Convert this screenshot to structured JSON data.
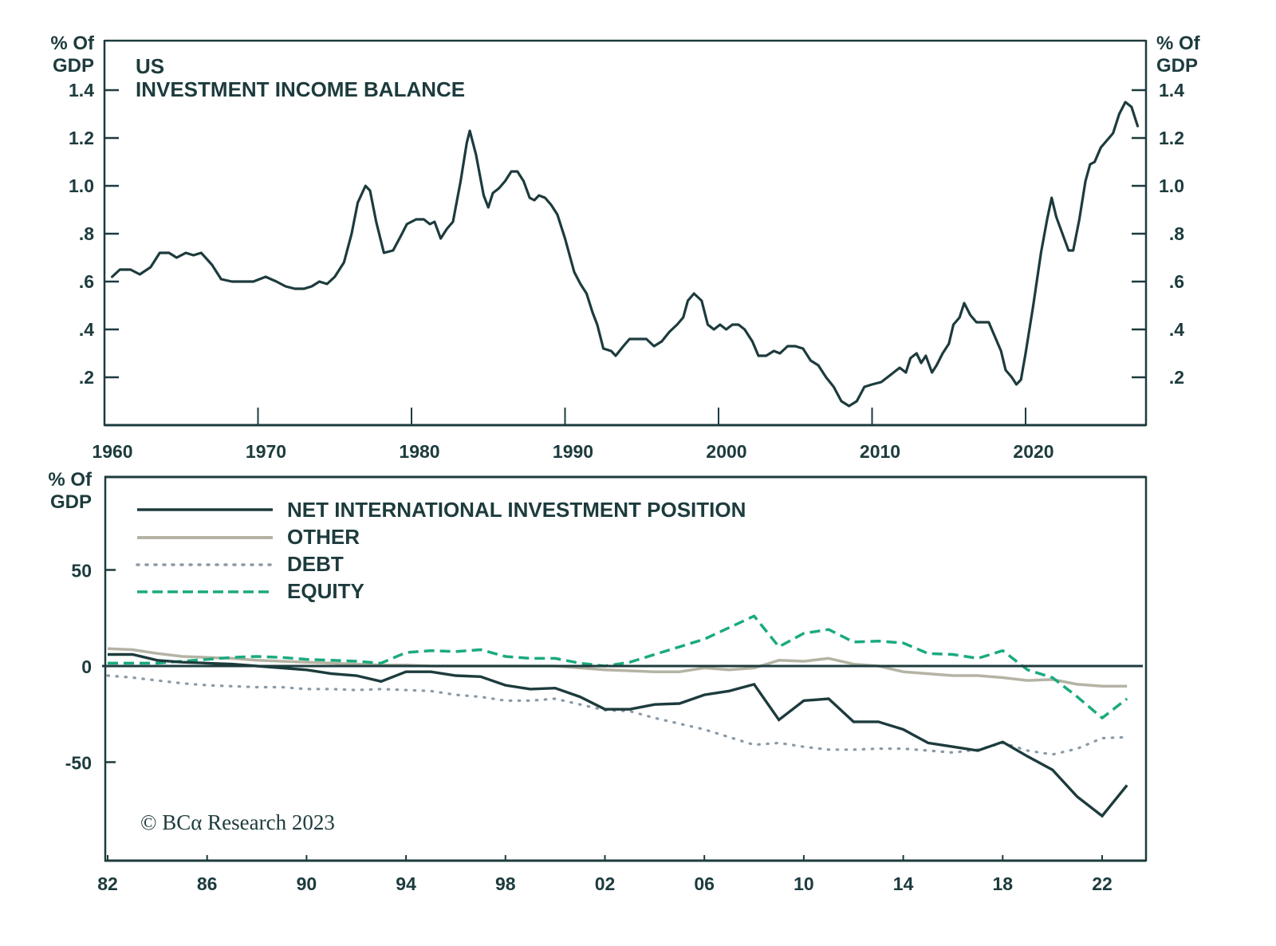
{
  "chart_data": [
    {
      "type": "line",
      "title": "US",
      "subtitle": "INVESTMENT INCOME BALANCE",
      "ylabel_left": "% Of\nGDP",
      "ylabel_right": "% Of\nGDP",
      "xlabel": "",
      "xlim": [
        1960,
        2028
      ],
      "ylim": [
        0,
        1.6
      ],
      "yticks": [
        0.2,
        0.4,
        0.6,
        0.8,
        1.0,
        1.2,
        1.4
      ],
      "ytick_labels": [
        ".2",
        ".4",
        ".6",
        ".8",
        "1.0",
        "1.2",
        "1.4"
      ],
      "xticks": [
        1960,
        1970,
        1980,
        1990,
        2000,
        2010,
        2020
      ],
      "xtick_labels": [
        "1960",
        "1970",
        "1980",
        "1990",
        "2000",
        "2010",
        "2020"
      ],
      "grid": false,
      "series": [
        {
          "name": "Investment Income Balance",
          "color": "#1d3b3d",
          "style": "solid",
          "points": [
            [
              1960.5,
              0.62
            ],
            [
              1961,
              0.65
            ],
            [
              1961.7,
              0.65
            ],
            [
              1962.3,
              0.63
            ],
            [
              1963,
              0.66
            ],
            [
              1963.6,
              0.72
            ],
            [
              1964.2,
              0.72
            ],
            [
              1964.7,
              0.7
            ],
            [
              1965.3,
              0.72
            ],
            [
              1965.8,
              0.71
            ],
            [
              1966.3,
              0.72
            ],
            [
              1967,
              0.67
            ],
            [
              1967.6,
              0.61
            ],
            [
              1968.3,
              0.6
            ],
            [
              1969,
              0.6
            ],
            [
              1969.7,
              0.6
            ],
            [
              1970.5,
              0.62
            ],
            [
              1971.2,
              0.6
            ],
            [
              1971.8,
              0.58
            ],
            [
              1972.4,
              0.57
            ],
            [
              1973,
              0.57
            ],
            [
              1973.5,
              0.58
            ],
            [
              1974,
              0.6
            ],
            [
              1974.5,
              0.59
            ],
            [
              1975,
              0.62
            ],
            [
              1975.6,
              0.68
            ],
            [
              1976.1,
              0.8
            ],
            [
              1976.5,
              0.93
            ],
            [
              1977,
              1.0
            ],
            [
              1977.3,
              0.98
            ],
            [
              1977.7,
              0.85
            ],
            [
              1978.2,
              0.72
            ],
            [
              1978.8,
              0.73
            ],
            [
              1979.3,
              0.79
            ],
            [
              1979.7,
              0.84
            ],
            [
              1980.3,
              0.86
            ],
            [
              1980.8,
              0.86
            ],
            [
              1981.2,
              0.84
            ],
            [
              1981.5,
              0.85
            ],
            [
              1981.9,
              0.78
            ],
            [
              1982.3,
              0.82
            ],
            [
              1982.7,
              0.85
            ],
            [
              1983.2,
              1.02
            ],
            [
              1983.6,
              1.18
            ],
            [
              1983.8,
              1.23
            ],
            [
              1984.2,
              1.13
            ],
            [
              1984.7,
              0.96
            ],
            [
              1985,
              0.91
            ],
            [
              1985.3,
              0.97
            ],
            [
              1985.7,
              0.99
            ],
            [
              1986.1,
              1.02
            ],
            [
              1986.5,
              1.06
            ],
            [
              1986.9,
              1.06
            ],
            [
              1987.3,
              1.02
            ],
            [
              1987.7,
              0.95
            ],
            [
              1988,
              0.94
            ],
            [
              1988.3,
              0.96
            ],
            [
              1988.7,
              0.95
            ],
            [
              1989.1,
              0.92
            ],
            [
              1989.5,
              0.88
            ],
            [
              1990,
              0.78
            ],
            [
              1990.6,
              0.64
            ],
            [
              1991,
              0.59
            ],
            [
              1991.4,
              0.55
            ],
            [
              1991.8,
              0.47
            ],
            [
              1992.1,
              0.42
            ],
            [
              1992.5,
              0.32
            ],
            [
              1993,
              0.31
            ],
            [
              1993.3,
              0.29
            ],
            [
              1993.8,
              0.33
            ],
            [
              1994.2,
              0.36
            ],
            [
              1994.8,
              0.36
            ],
            [
              1995.3,
              0.36
            ],
            [
              1995.8,
              0.33
            ],
            [
              1996.3,
              0.35
            ],
            [
              1996.8,
              0.39
            ],
            [
              1997.3,
              0.42
            ],
            [
              1997.7,
              0.45
            ],
            [
              1998,
              0.52
            ],
            [
              1998.4,
              0.55
            ],
            [
              1998.9,
              0.52
            ],
            [
              1999.3,
              0.42
            ],
            [
              1999.7,
              0.4
            ],
            [
              2000.1,
              0.42
            ],
            [
              2000.5,
              0.4
            ],
            [
              2000.9,
              0.42
            ],
            [
              2001.3,
              0.42
            ],
            [
              2001.7,
              0.4
            ],
            [
              2002.2,
              0.35
            ],
            [
              2002.6,
              0.29
            ],
            [
              2003.1,
              0.29
            ],
            [
              2003.6,
              0.31
            ],
            [
              2004,
              0.3
            ],
            [
              2004.5,
              0.33
            ],
            [
              2005,
              0.33
            ],
            [
              2005.5,
              0.32
            ],
            [
              2006,
              0.27
            ],
            [
              2006.5,
              0.25
            ],
            [
              2007,
              0.2
            ],
            [
              2007.5,
              0.16
            ],
            [
              2008,
              0.1
            ],
            [
              2008.5,
              0.08
            ],
            [
              2009,
              0.1
            ],
            [
              2009.5,
              0.16
            ],
            [
              2010,
              0.17
            ],
            [
              2010.6,
              0.18
            ],
            [
              2011,
              0.2
            ],
            [
              2011.4,
              0.22
            ],
            [
              2011.8,
              0.24
            ],
            [
              2012.2,
              0.22
            ],
            [
              2012.5,
              0.28
            ],
            [
              2012.9,
              0.3
            ],
            [
              2013.2,
              0.26
            ],
            [
              2013.5,
              0.29
            ],
            [
              2013.9,
              0.22
            ],
            [
              2014.2,
              0.25
            ],
            [
              2014.6,
              0.3
            ],
            [
              2015,
              0.34
            ],
            [
              2015.3,
              0.42
            ],
            [
              2015.7,
              0.45
            ],
            [
              2016,
              0.51
            ],
            [
              2016.4,
              0.46
            ],
            [
              2016.8,
              0.43
            ],
            [
              2017.6,
              0.43
            ],
            [
              2018,
              0.37
            ],
            [
              2018.4,
              0.31
            ],
            [
              2018.7,
              0.23
            ],
            [
              2019.1,
              0.2
            ],
            [
              2019.4,
              0.17
            ],
            [
              2019.7,
              0.19
            ],
            [
              2020,
              0.3
            ],
            [
              2020.5,
              0.5
            ],
            [
              2021,
              0.72
            ],
            [
              2021.4,
              0.86
            ],
            [
              2021.7,
              0.95
            ],
            [
              2022,
              0.87
            ],
            [
              2022.4,
              0.8
            ],
            [
              2022.8,
              0.73
            ],
            [
              2023.1,
              0.73
            ],
            [
              2023.5,
              0.86
            ],
            [
              2023.9,
              1.02
            ],
            [
              2024.2,
              1.09
            ],
            [
              2024.5,
              1.1
            ],
            [
              2024.9,
              1.16
            ],
            [
              2025.3,
              1.19
            ],
            [
              2025.7,
              1.22
            ],
            [
              2026.1,
              1.3
            ],
            [
              2026.5,
              1.35
            ],
            [
              2026.9,
              1.33
            ],
            [
              2027.3,
              1.25
            ]
          ]
        }
      ]
    },
    {
      "type": "line",
      "title": "",
      "ylabel": "% Of\nGDP",
      "xlabel": "",
      "xlim": [
        1982,
        2023.8
      ],
      "ylim": [
        -102,
        102
      ],
      "yticks": [
        50,
        0,
        -50
      ],
      "ytick_labels": [
        "50",
        "0",
        "-50"
      ],
      "xticks": [
        1982,
        1986,
        1990,
        1994,
        1998,
        2002,
        2006,
        2010,
        2014,
        2018,
        2022
      ],
      "xtick_labels": [
        "82",
        "86",
        "90",
        "94",
        "98",
        "02",
        "06",
        "10",
        "14",
        "18",
        "22"
      ],
      "grid": false,
      "zero_line": true,
      "legend_placement": "top-left",
      "annotation": "© BCα Research 2023",
      "series": [
        {
          "name": "NET INTERNATIONAL INVESTMENT POSITION",
          "color": "#1d3b3d",
          "style": "solid",
          "x": [
            1982,
            1983,
            1984,
            1985,
            1986,
            1987,
            1988,
            1989,
            1990,
            1991,
            1992,
            1993,
            1994,
            1995,
            1996,
            1997,
            1998,
            1999,
            2000,
            2001,
            2002,
            2003,
            2004,
            2005,
            2006,
            2007,
            2008,
            2009,
            2010,
            2011,
            2012,
            2013,
            2014,
            2015,
            2016,
            2017,
            2018,
            2019,
            2020,
            2021,
            2022,
            2023
          ],
          "values": [
            6,
            6,
            3,
            2,
            1.5,
            1,
            0,
            -1,
            -2,
            -4,
            -5,
            -8,
            -3,
            -3,
            -5,
            -5.5,
            -10,
            -12,
            -11.5,
            -16,
            -22.5,
            -22.5,
            -20,
            -19.5,
            -15,
            -13,
            -9.5,
            -28,
            -18,
            -17,
            -29,
            -29,
            -33,
            -40,
            -42,
            -44,
            -39.5,
            -47,
            -54,
            -68,
            -78,
            -62
          ]
        },
        {
          "name": "OTHER",
          "color": "#b5b3a4",
          "style": "solid",
          "x": [
            1982,
            1983,
            1984,
            1985,
            1986,
            1987,
            1988,
            1989,
            1990,
            1991,
            1992,
            1993,
            1994,
            1995,
            1996,
            1997,
            1998,
            1999,
            2000,
            2001,
            2002,
            2003,
            2004,
            2005,
            2006,
            2007,
            2008,
            2009,
            2010,
            2011,
            2012,
            2013,
            2014,
            2015,
            2016,
            2017,
            2018,
            2019,
            2020,
            2021,
            2022,
            2023
          ],
          "values": [
            9,
            8.5,
            6.5,
            5,
            4.5,
            4,
            3,
            2.5,
            2,
            1.5,
            1,
            0.5,
            0.5,
            0,
            0,
            0,
            0,
            0,
            0,
            -1,
            -2,
            -2.5,
            -3,
            -3,
            -1,
            -2,
            -1,
            3,
            2.5,
            4,
            1,
            0,
            -3,
            -4,
            -5,
            -5,
            -6,
            -7.5,
            -7,
            -9.5,
            -10.5,
            -10.5
          ]
        },
        {
          "name": "DEBT",
          "color": "#8a9aa7",
          "style": "dotted",
          "x": [
            1982,
            1983,
            1984,
            1985,
            1986,
            1987,
            1988,
            1989,
            1990,
            1991,
            1992,
            1993,
            1994,
            1995,
            1996,
            1997,
            1998,
            1999,
            2000,
            2001,
            2002,
            2003,
            2004,
            2005,
            2006,
            2007,
            2008,
            2009,
            2010,
            2011,
            2012,
            2013,
            2014,
            2015,
            2016,
            2017,
            2018,
            2019,
            2020,
            2021,
            2022,
            2023
          ],
          "values": [
            -5,
            -6,
            -7.5,
            -9,
            -10,
            -10.5,
            -11,
            -11,
            -12,
            -12,
            -12.5,
            -12,
            -12.5,
            -13,
            -15,
            -16,
            -18,
            -18,
            -17,
            -20,
            -23,
            -23.5,
            -27,
            -30,
            -33,
            -37,
            -41,
            -40,
            -42,
            -43.5,
            -43.5,
            -43,
            -43,
            -44,
            -45,
            -43.5,
            -40,
            -44,
            -46,
            -43,
            -37.5,
            -37
          ]
        },
        {
          "name": "EQUITY",
          "color": "#1aaa7f",
          "style": "dashed",
          "x": [
            1982,
            1983,
            1984,
            1985,
            1986,
            1987,
            1988,
            1989,
            1990,
            1991,
            1992,
            1993,
            1994,
            1995,
            1996,
            1997,
            1998,
            1999,
            2000,
            2001,
            2002,
            2003,
            2004,
            2005,
            2006,
            2007,
            2008,
            2009,
            2010,
            2011,
            2012,
            2013,
            2014,
            2015,
            2016,
            2017,
            2018,
            2019,
            2020,
            2021,
            2022,
            2023
          ],
          "values": [
            1.5,
            1.5,
            1.5,
            2.5,
            3.5,
            4.5,
            5,
            4.5,
            3.5,
            3,
            2.5,
            1.5,
            7,
            8,
            7.5,
            8.5,
            5,
            4,
            4,
            1.5,
            0,
            2,
            6,
            10,
            14,
            20,
            26,
            10,
            17,
            19,
            12.5,
            13,
            12,
            6.5,
            6,
            4,
            8,
            -2,
            -6,
            -16,
            -27,
            -17
          ]
        }
      ]
    }
  ],
  "top_chart": {
    "title": "US",
    "subtitle": "INVESTMENT INCOME BALANCE",
    "ylabel_left_line1": "% Of",
    "ylabel_left_line2": "GDP",
    "ylabel_right_line1": "% Of",
    "ylabel_right_line2": "GDP"
  },
  "bottom_chart": {
    "ylabel_line1": "% Of",
    "ylabel_line2": "GDP",
    "legend": [
      {
        "label": "NET INTERNATIONAL INVESTMENT POSITION"
      },
      {
        "label": "OTHER"
      },
      {
        "label": "DEBT"
      },
      {
        "label": "EQUITY"
      }
    ],
    "copyright": "© BCα Research 2023"
  },
  "colors": {
    "ink": "#1d3b3d",
    "other": "#b5b3a4",
    "debt": "#8a9aa7",
    "equity": "#1aaa7f"
  }
}
